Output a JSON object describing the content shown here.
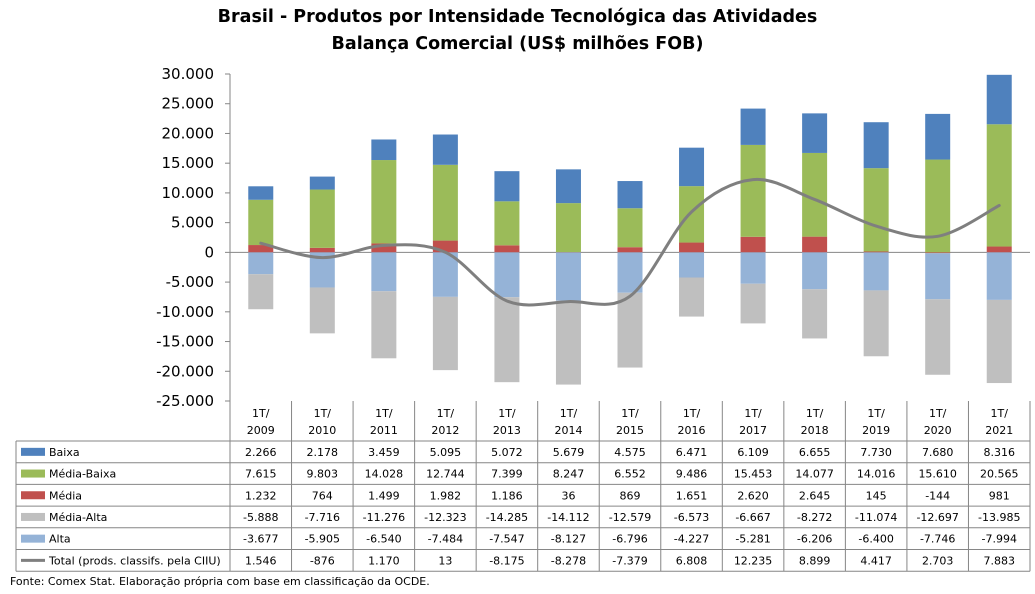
{
  "chart_data": {
    "type": "bar",
    "title": "Brasil - Produtos por Intensidade Tecnológica das Atividades",
    "subtitle": "Balança Comercial (US$ milhões FOB)",
    "categories": [
      "1T/ 2009",
      "1T/ 2010",
      "1T/ 2011",
      "1T/ 2012",
      "1T/ 2013",
      "1T/ 2014",
      "1T/ 2015",
      "1T/ 2016",
      "1T/ 2017",
      "1T/ 2018",
      "1T/ 2019",
      "1T/ 2020",
      "1T/ 2021"
    ],
    "category_lines": [
      [
        "1T/",
        "2009"
      ],
      [
        "1T/",
        "2010"
      ],
      [
        "1T/",
        "2011"
      ],
      [
        "1T/",
        "2012"
      ],
      [
        "1T/",
        "2013"
      ],
      [
        "1T/",
        "2014"
      ],
      [
        "1T/",
        "2015"
      ],
      [
        "1T/",
        "2016"
      ],
      [
        "1T/",
        "2017"
      ],
      [
        "1T/",
        "2018"
      ],
      [
        "1T/",
        "2019"
      ],
      [
        "1T/",
        "2020"
      ],
      [
        "1T/",
        "2021"
      ]
    ],
    "ylim": [
      -25000,
      30000
    ],
    "yticks": [
      30000,
      25000,
      20000,
      15000,
      10000,
      5000,
      0,
      -5000,
      -10000,
      -15000,
      -20000,
      -25000
    ],
    "ytick_labels": [
      "30.000",
      "25.000",
      "20.000",
      "15.000",
      "10.000",
      "5.000",
      "0",
      "-5.000",
      "-10.000",
      "-15.000",
      "-20.000",
      "-25.000"
    ],
    "series": [
      {
        "name": "Baixa",
        "kind": "bar",
        "color": "#4f81bd",
        "values": [
          2266,
          2178,
          3459,
          5095,
          5072,
          5679,
          4575,
          6471,
          6109,
          6655,
          7730,
          7680,
          8316
        ],
        "labels": [
          "2.266",
          "2.178",
          "3.459",
          "5.095",
          "5.072",
          "5.679",
          "4.575",
          "6.471",
          "6.109",
          "6.655",
          "7.730",
          "7.680",
          "8.316"
        ]
      },
      {
        "name": "Média-Baixa",
        "kind": "bar",
        "color": "#9bbb59",
        "values": [
          7615,
          9803,
          14028,
          12744,
          7399,
          8247,
          6552,
          9486,
          15453,
          14077,
          14016,
          15610,
          20565
        ],
        "labels": [
          "7.615",
          "9.803",
          "14.028",
          "12.744",
          "7.399",
          "8.247",
          "6.552",
          "9.486",
          "15.453",
          "14.077",
          "14.016",
          "15.610",
          "20.565"
        ]
      },
      {
        "name": "Média",
        "kind": "bar",
        "color": "#c0504d",
        "values": [
          1232,
          764,
          1499,
          1982,
          1186,
          36,
          869,
          1651,
          2620,
          2645,
          145,
          -144,
          981
        ],
        "labels": [
          "1.232",
          "764",
          "1.499",
          "1.982",
          "1.186",
          "36",
          "869",
          "1.651",
          "2.620",
          "2.645",
          "145",
          "-144",
          "981"
        ]
      },
      {
        "name": "Média-Alta",
        "kind": "bar",
        "color": "#bfbfbf",
        "values": [
          -5888,
          -7716,
          -11276,
          -12323,
          -14285,
          -14112,
          -12579,
          -6573,
          -6667,
          -8272,
          -11074,
          -12697,
          -13985
        ],
        "labels": [
          "-5.888",
          "-7.716",
          "-11.276",
          "-12.323",
          "-14.285",
          "-14.112",
          "-12.579",
          "-6.573",
          "-6.667",
          "-8.272",
          "-11.074",
          "-12.697",
          "-13.985"
        ]
      },
      {
        "name": "Alta",
        "kind": "bar",
        "color": "#95b3d7",
        "values": [
          -3677,
          -5905,
          -6540,
          -7484,
          -7547,
          -8127,
          -6796,
          -4227,
          -5281,
          -6206,
          -6400,
          -7746,
          -7994
        ],
        "labels": [
          "-3.677",
          "-5.905",
          "-6.540",
          "-7.484",
          "-7.547",
          "-8.127",
          "-6.796",
          "-4.227",
          "-5.281",
          "-6.206",
          "-6.400",
          "-7.746",
          "-7.994"
        ]
      },
      {
        "name": "Total (prods. classifs. pela CIIU)",
        "kind": "line",
        "color": "#7f7f7f",
        "values": [
          1546,
          -876,
          1170,
          13,
          -8175,
          -8278,
          -7379,
          6808,
          12235,
          8899,
          4417,
          2703,
          7883
        ],
        "labels": [
          "1.546",
          "-876",
          "1.170",
          "13",
          "-8.175",
          "-8.278",
          "-7.379",
          "6.808",
          "12.235",
          "8.899",
          "4.417",
          "2.703",
          "7.883"
        ]
      }
    ],
    "stack_order_positive": [
      "Média",
      "Média-Baixa",
      "Baixa"
    ],
    "stack_order_negative": [
      "Alta",
      "Média-Alta"
    ],
    "grid": false,
    "legend": "data-table"
  },
  "source_note": "Fonte: Comex Stat. Elaboração própria com base em classificação da OCDE."
}
